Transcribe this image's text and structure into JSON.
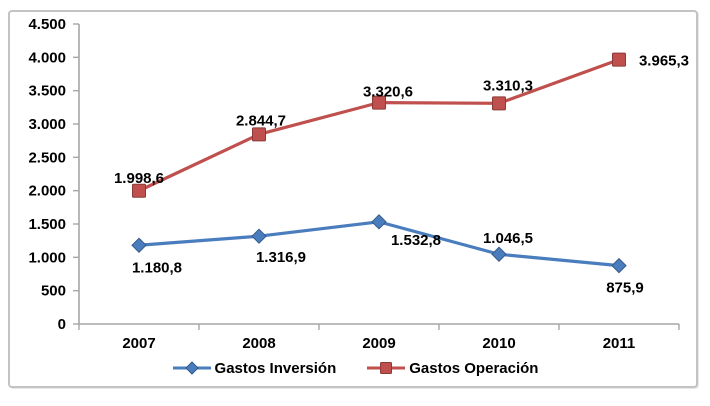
{
  "chart": {
    "background": "#ffffff",
    "frame_border_color": "#c3c3c3",
    "axis_color": "#a6a6a6",
    "text_color": "#000000"
  },
  "chart_data": {
    "type": "line",
    "title": "",
    "xlabel": "",
    "ylabel": "",
    "grid": false,
    "legend_position": "bottom",
    "categories": [
      "2007",
      "2008",
      "2009",
      "2010",
      "2011"
    ],
    "series": [
      {
        "name": "Gastos Inversión",
        "color": "#4a7dbe",
        "edge_color": "#35movie5e91",
        "marker": "diamond",
        "values": [
          1180.8,
          1316.9,
          1532.8,
          1046.5,
          875.9
        ],
        "labels": [
          "1.180,8",
          "1.316,9",
          "1.532,8",
          "1.046,5",
          "875,9"
        ],
        "label_offsets": [
          [
            18,
            27
          ],
          [
            22,
            26
          ],
          [
            37,
            23
          ],
          [
            9,
            -11
          ],
          [
            6,
            27
          ]
        ]
      },
      {
        "name": "Gastos Operación",
        "color": "#c0504d",
        "edge_color": "#8e3432",
        "marker": "square",
        "values": [
          1998.6,
          2844.7,
          3320.6,
          3310.3,
          3965.3
        ],
        "labels": [
          "1.998,6",
          "2.844,7",
          "3.320,6",
          "3.310,3",
          "3.965,3"
        ],
        "label_offsets": [
          [
            0,
            -8
          ],
          [
            2,
            -9
          ],
          [
            9,
            -6
          ],
          [
            9,
            -13
          ],
          [
            45,
            6
          ]
        ]
      }
    ],
    "y_axis": {
      "min": 0,
      "max": 4500,
      "step": 500,
      "tick_labels": [
        "0",
        "500",
        "1.000",
        "1.500",
        "2.000",
        "2.500",
        "3.000",
        "3.500",
        "4.000",
        "4.500"
      ]
    },
    "ylim": [
      0,
      4500
    ]
  }
}
